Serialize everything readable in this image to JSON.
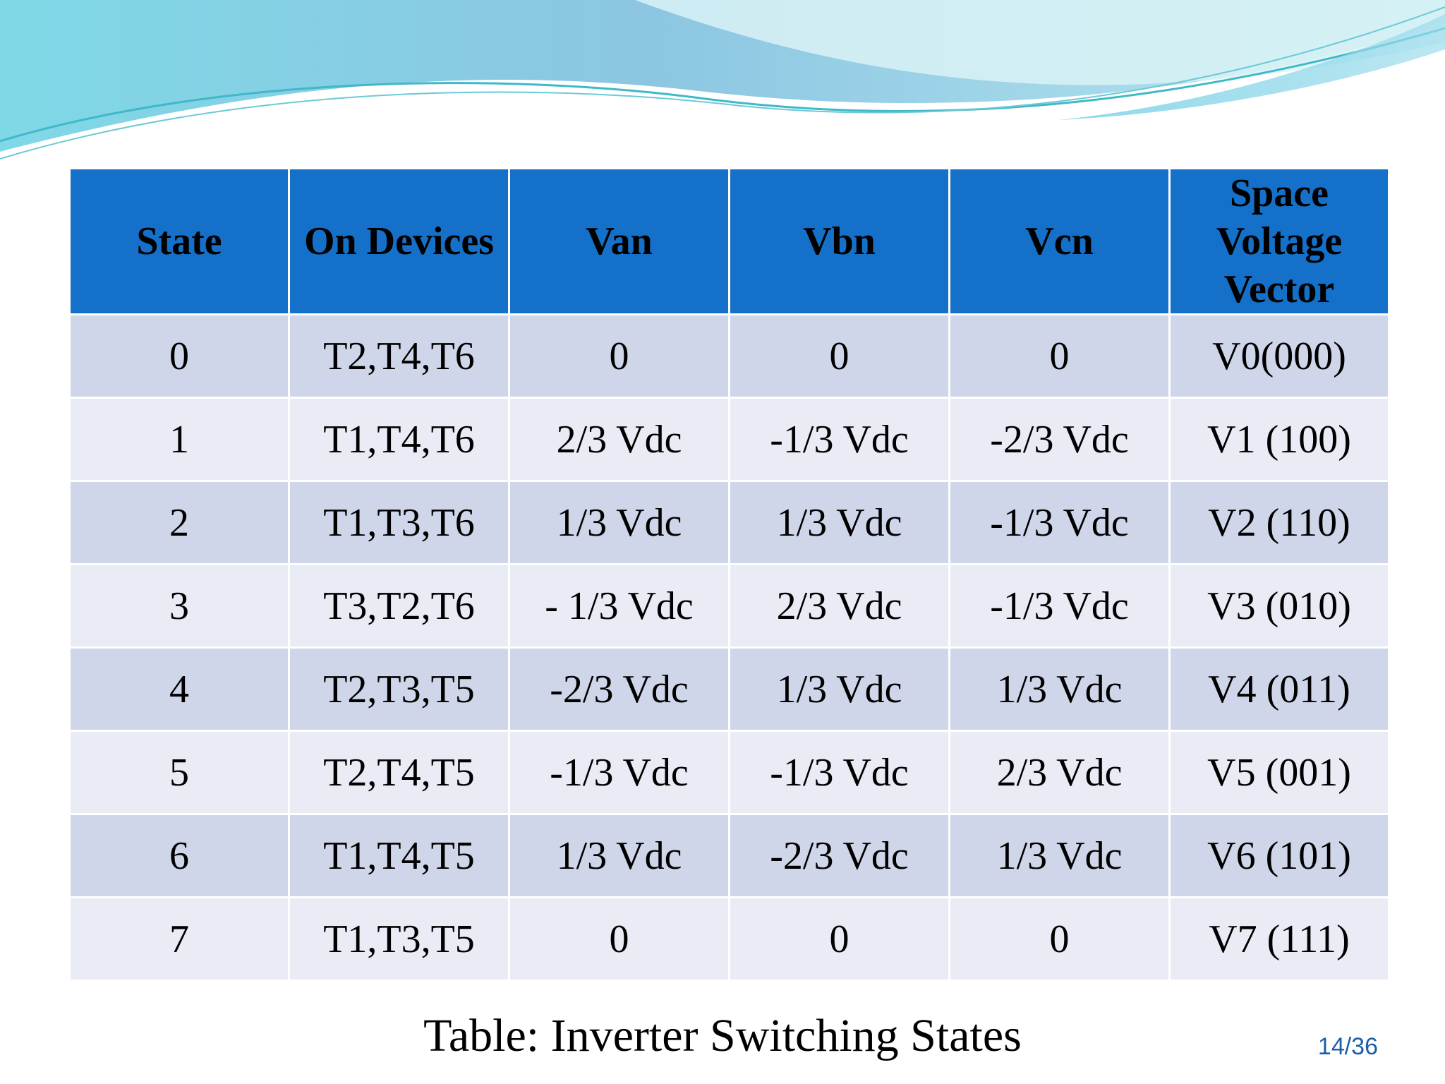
{
  "table": {
    "headers": [
      "State",
      "On Devices",
      "Van",
      "Vbn",
      "Vcn",
      "Space Voltage Vector"
    ],
    "rows": [
      [
        "0",
        "T2,T4,T6",
        "0",
        "0",
        "0",
        "V0(000)"
      ],
      [
        "1",
        "T1,T4,T6",
        "2/3 Vdc",
        "-1/3 Vdc",
        "-2/3 Vdc",
        "V1 (100)"
      ],
      [
        "2",
        "T1,T3,T6",
        "1/3 Vdc",
        "1/3 Vdc",
        "-1/3 Vdc",
        "V2 (110)"
      ],
      [
        "3",
        "T3,T2,T6",
        "- 1/3 Vdc",
        "2/3 Vdc",
        "-1/3 Vdc",
        "V3 (010)"
      ],
      [
        "4",
        "T2,T3,T5",
        "-2/3 Vdc",
        "1/3 Vdc",
        "1/3 Vdc",
        "V4 (011)"
      ],
      [
        "5",
        "T2,T4,T5",
        "-1/3 Vdc",
        "-1/3 Vdc",
        "2/3 Vdc",
        "V5 (001)"
      ],
      [
        "6",
        "T1,T4,T5",
        "1/3 Vdc",
        "-2/3 Vdc",
        "1/3 Vdc",
        "V6 (101)"
      ],
      [
        "7",
        "T1,T3,T5",
        "0",
        "0",
        "0",
        "V7 (111)"
      ]
    ]
  },
  "caption": "Table: Inverter Switching States",
  "page_number": "14/36",
  "colors": {
    "header_bg": "#1470c8",
    "row_odd_bg": "#d0d6e9",
    "row_even_bg": "#e9ebf5",
    "page_number": "#1b5fa8"
  }
}
